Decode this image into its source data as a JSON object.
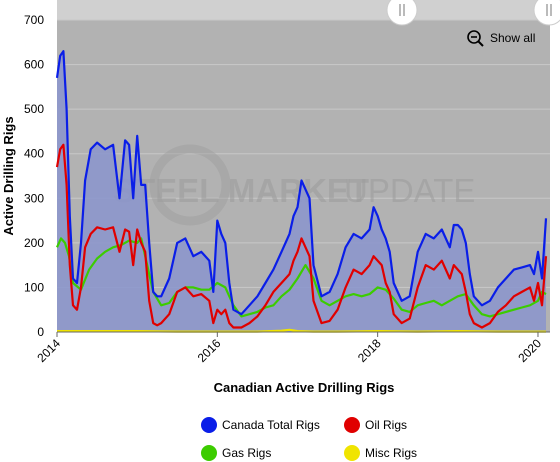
{
  "watermark": {
    "bold": "STEEL MARKET",
    "light": "UPDATE"
  },
  "controls": {
    "show_all_label": "Show all",
    "zoom_out_icon": "zoom-out-icon",
    "slider_handle_icon": "slider-handle-icon"
  },
  "colors": {
    "plot_bg": "#b2b2b2",
    "total": "#0a1ee8",
    "oil": "#e00000",
    "gas": "#3ccc00",
    "misc": "#f0e400",
    "area_fill": "#8a94cc"
  },
  "chart_data": {
    "type": "area",
    "title": "",
    "xlabel": "Canadian Active Drilling Rigs",
    "ylabel": "Active Drilling Rigs",
    "x_ticks": [
      "2014",
      "2016",
      "2018",
      "2020"
    ],
    "y_ticks": [
      "0",
      "100",
      "200",
      "300",
      "400",
      "500",
      "600",
      "700"
    ],
    "ylim": [
      0,
      700
    ],
    "xlim": [
      2014.0,
      2020.15
    ],
    "grid": true,
    "legend": "bottom",
    "series": [
      {
        "name": "Canada Total Rigs",
        "color": "#0a1ee8",
        "x": [
          2014.0,
          2014.04,
          2014.08,
          2014.12,
          2014.16,
          2014.2,
          2014.25,
          2014.3,
          2014.35,
          2014.42,
          2014.5,
          2014.6,
          2014.7,
          2014.78,
          2014.85,
          2014.9,
          2014.95,
          2015.0,
          2015.05,
          2015.1,
          2015.15,
          2015.2,
          2015.25,
          2015.3,
          2015.4,
          2015.5,
          2015.6,
          2015.7,
          2015.8,
          2015.9,
          2015.95,
          2016.0,
          2016.05,
          2016.1,
          2016.15,
          2016.2,
          2016.3,
          2016.4,
          2016.5,
          2016.6,
          2016.7,
          2016.8,
          2016.9,
          2016.95,
          2017.0,
          2017.05,
          2017.1,
          2017.15,
          2017.2,
          2017.3,
          2017.4,
          2017.5,
          2017.6,
          2017.7,
          2017.8,
          2017.9,
          2017.95,
          2018.0,
          2018.05,
          2018.1,
          2018.15,
          2018.2,
          2018.3,
          2018.4,
          2018.5,
          2018.6,
          2018.7,
          2018.8,
          2018.9,
          2018.95,
          2019.0,
          2019.05,
          2019.1,
          2019.15,
          2019.2,
          2019.3,
          2019.4,
          2019.5,
          2019.6,
          2019.7,
          2019.8,
          2019.9,
          2019.95,
          2020.0,
          2020.05,
          2020.1
        ],
        "values": [
          570,
          620,
          630,
          500,
          260,
          120,
          110,
          200,
          340,
          410,
          425,
          410,
          420,
          300,
          430,
          420,
          300,
          440,
          330,
          330,
          200,
          90,
          80,
          80,
          120,
          200,
          210,
          170,
          180,
          160,
          90,
          250,
          220,
          200,
          110,
          50,
          40,
          60,
          80,
          110,
          140,
          180,
          220,
          260,
          280,
          340,
          320,
          300,
          150,
          80,
          90,
          130,
          190,
          220,
          210,
          230,
          280,
          260,
          230,
          210,
          180,
          110,
          70,
          80,
          180,
          220,
          210,
          230,
          190,
          240,
          240,
          230,
          200,
          130,
          80,
          60,
          70,
          100,
          120,
          140,
          145,
          150,
          130,
          180,
          120,
          255
        ]
      },
      {
        "name": "Oil Rigs",
        "color": "#e00000",
        "x": [
          2014.0,
          2014.04,
          2014.08,
          2014.12,
          2014.16,
          2014.2,
          2014.25,
          2014.3,
          2014.35,
          2014.42,
          2014.5,
          2014.6,
          2014.7,
          2014.78,
          2014.85,
          2014.9,
          2014.95,
          2015.0,
          2015.05,
          2015.1,
          2015.15,
          2015.2,
          2015.25,
          2015.3,
          2015.4,
          2015.5,
          2015.6,
          2015.7,
          2015.8,
          2015.9,
          2015.95,
          2016.0,
          2016.05,
          2016.1,
          2016.15,
          2016.2,
          2016.3,
          2016.4,
          2016.5,
          2016.6,
          2016.7,
          2016.8,
          2016.9,
          2016.95,
          2017.0,
          2017.05,
          2017.1,
          2017.15,
          2017.2,
          2017.3,
          2017.4,
          2017.5,
          2017.6,
          2017.7,
          2017.8,
          2017.9,
          2017.95,
          2018.0,
          2018.05,
          2018.1,
          2018.15,
          2018.2,
          2018.3,
          2018.4,
          2018.5,
          2018.6,
          2018.7,
          2018.8,
          2018.9,
          2018.95,
          2019.0,
          2019.05,
          2019.1,
          2019.15,
          2019.2,
          2019.3,
          2019.4,
          2019.5,
          2019.6,
          2019.7,
          2019.8,
          2019.9,
          2019.95,
          2020.0,
          2020.05,
          2020.1
        ],
        "values": [
          370,
          410,
          420,
          330,
          150,
          60,
          50,
          100,
          190,
          220,
          235,
          230,
          235,
          180,
          230,
          225,
          150,
          230,
          200,
          180,
          70,
          20,
          15,
          20,
          40,
          90,
          100,
          80,
          85,
          70,
          20,
          50,
          40,
          50,
          20,
          10,
          10,
          20,
          35,
          60,
          90,
          110,
          130,
          160,
          180,
          210,
          190,
          170,
          70,
          20,
          25,
          50,
          100,
          140,
          130,
          150,
          170,
          160,
          150,
          110,
          90,
          40,
          20,
          30,
          100,
          150,
          140,
          160,
          120,
          150,
          140,
          130,
          90,
          40,
          20,
          10,
          20,
          45,
          60,
          80,
          90,
          100,
          70,
          110,
          60,
          170
        ]
      },
      {
        "name": "Gas Rigs",
        "color": "#3ccc00",
        "x": [
          2014.0,
          2014.05,
          2014.1,
          2014.15,
          2014.2,
          2014.3,
          2014.4,
          2014.5,
          2014.6,
          2014.7,
          2014.8,
          2014.9,
          2015.0,
          2015.05,
          2015.1,
          2015.2,
          2015.3,
          2015.4,
          2015.5,
          2015.6,
          2015.7,
          2015.8,
          2015.9,
          2016.0,
          2016.1,
          2016.2,
          2016.3,
          2016.4,
          2016.5,
          2016.6,
          2016.7,
          2016.8,
          2016.9,
          2017.0,
          2017.1,
          2017.2,
          2017.3,
          2017.4,
          2017.5,
          2017.6,
          2017.7,
          2017.8,
          2017.9,
          2018.0,
          2018.1,
          2018.2,
          2018.3,
          2018.4,
          2018.5,
          2018.6,
          2018.7,
          2018.8,
          2018.9,
          2019.0,
          2019.1,
          2019.2,
          2019.3,
          2019.4,
          2019.5,
          2019.6,
          2019.7,
          2019.8,
          2019.9,
          2020.0,
          2020.05,
          2020.1
        ],
        "values": [
          190,
          210,
          200,
          170,
          110,
          95,
          140,
          165,
          180,
          190,
          195,
          205,
          200,
          210,
          170,
          90,
          60,
          65,
          90,
          100,
          100,
          95,
          95,
          110,
          100,
          60,
          35,
          40,
          45,
          55,
          60,
          80,
          95,
          120,
          150,
          120,
          70,
          60,
          70,
          80,
          85,
          80,
          85,
          100,
          95,
          75,
          50,
          45,
          60,
          65,
          70,
          60,
          70,
          80,
          85,
          60,
          40,
          35,
          40,
          45,
          50,
          55,
          60,
          70,
          90,
          85
        ]
      },
      {
        "name": "Misc Rigs",
        "color": "#f0e400",
        "x": [
          2014.0,
          2014.5,
          2015.0,
          2015.5,
          2016.0,
          2016.5,
          2016.8,
          2016.9,
          2017.0,
          2017.2,
          2017.5,
          2018.0,
          2018.5,
          2019.0,
          2019.5,
          2020.0,
          2020.1
        ],
        "values": [
          2,
          2,
          2,
          1,
          1,
          1,
          3,
          5,
          2,
          1,
          1,
          2,
          1,
          2,
          1,
          1,
          1
        ]
      }
    ]
  }
}
